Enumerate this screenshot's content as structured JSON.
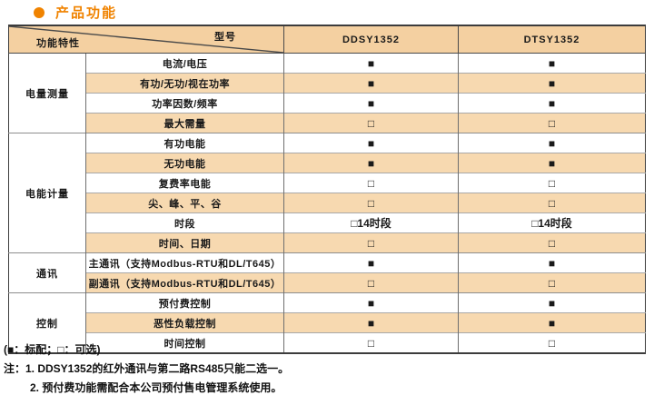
{
  "title": {
    "text": "产品功能"
  },
  "colors": {
    "accent_orange": "#F08300",
    "header_peach": "#F4D0A1",
    "row_peach": "#F7D9B0",
    "border_dark": "#3C3C3C",
    "border_mid": "#6E6E6E",
    "border_light": "#A8A8A8"
  },
  "table": {
    "corner": {
      "model_label": "型号",
      "feature_label": "功能特性"
    },
    "columns": [
      "DDSY1352",
      "DTSY1352"
    ],
    "symbols": {
      "standard": "■",
      "optional": "□"
    },
    "groups": [
      {
        "name": "电量测量",
        "rows": [
          {
            "feature": "电流/电压",
            "values": [
              "■",
              "■"
            ]
          },
          {
            "feature": "有功/无功/视在功率",
            "values": [
              "■",
              "■"
            ]
          },
          {
            "feature": "功率因数/频率",
            "values": [
              "■",
              "■"
            ]
          },
          {
            "feature": "最大需量",
            "values": [
              "□",
              "□"
            ]
          }
        ]
      },
      {
        "name": "电能计量",
        "rows": [
          {
            "feature": "有功电能",
            "values": [
              "■",
              "■"
            ]
          },
          {
            "feature": "无功电能",
            "values": [
              "■",
              "■"
            ]
          },
          {
            "feature": "复费率电能",
            "values": [
              "□",
              "□"
            ]
          },
          {
            "feature": "尖、峰、平、谷",
            "values": [
              "□",
              "□"
            ]
          },
          {
            "feature": "时段",
            "values": [
              "□14时段",
              "□14时段"
            ]
          },
          {
            "feature": "时间、日期",
            "values": [
              "□",
              "□"
            ]
          }
        ]
      },
      {
        "name": "通讯",
        "rows": [
          {
            "feature": "主通讯（支持Modbus-RTU和DL/T645）",
            "values": [
              "■",
              "■"
            ]
          },
          {
            "feature": "副通讯（支持Modbus-RTU和DL/T645）",
            "values": [
              "□",
              "□"
            ]
          }
        ]
      },
      {
        "name": "控制",
        "rows": [
          {
            "feature": "预付费控制",
            "values": [
              "■",
              "■"
            ]
          },
          {
            "feature": "恶性负载控制",
            "values": [
              "■",
              "■"
            ]
          },
          {
            "feature": "时间控制",
            "values": [
              "□",
              "□"
            ]
          }
        ]
      }
    ]
  },
  "footer": {
    "legend": "(■：标配；□：可选)",
    "note1": "注：1. DDSY1352的红外通讯与第二路RS485只能二选一。",
    "note2": "2. 预付费功能需配合本公司预付售电管理系统使用。"
  }
}
